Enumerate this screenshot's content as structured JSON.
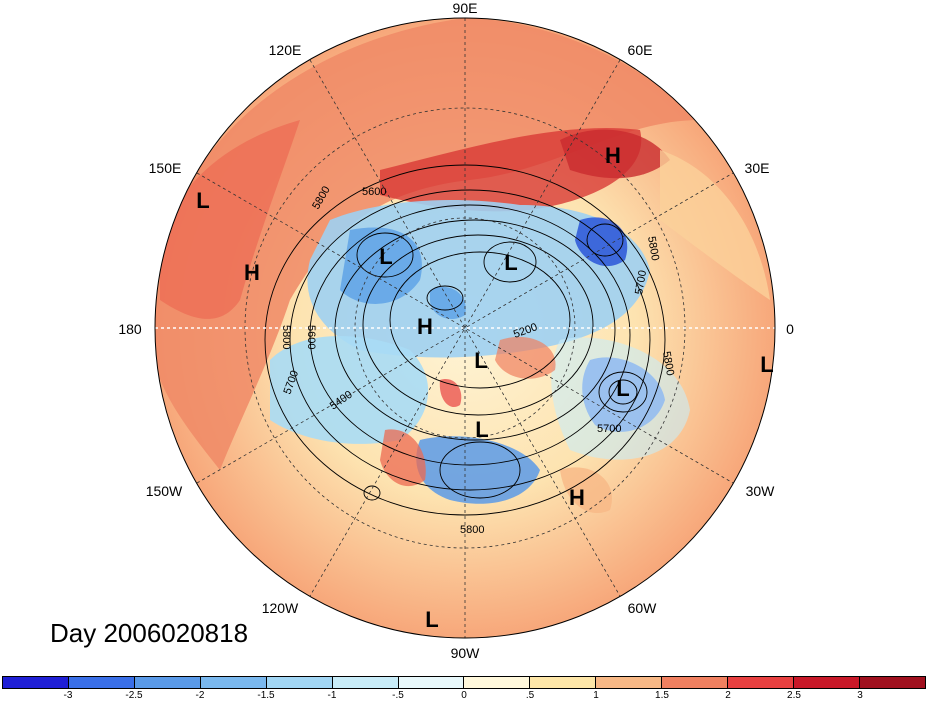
{
  "title": "Day 2006020818",
  "longitude_labels": {
    "lon_90e": "90E",
    "lon_60e": "60E",
    "lon_120e": "120E",
    "lon_30e": "30E",
    "lon_150e": "150E",
    "lon_180": "180",
    "lon_0": "0",
    "lon_150w": "150W",
    "lon_30w": "30W",
    "lon_120w": "120W",
    "lon_60w": "60W",
    "lon_90w": "90W"
  },
  "pressure_systems": [
    {
      "label": "H"
    },
    {
      "label": "H"
    },
    {
      "label": "H"
    },
    {
      "label": "H"
    },
    {
      "label": "L"
    },
    {
      "label": "L"
    },
    {
      "label": "L"
    },
    {
      "label": "L"
    },
    {
      "label": "L"
    },
    {
      "label": "L"
    },
    {
      "label": "L"
    },
    {
      "label": "L"
    }
  ],
  "contour_labels": [
    "5800",
    "5600",
    "5800",
    "5700",
    "5800",
    "5200",
    "5600",
    "5700",
    "5400",
    "5800",
    "5700",
    "5800"
  ],
  "colorbar": {
    "ticks": [
      "-3",
      "-2.5",
      "-2",
      "-1.5",
      "-1",
      "-.5",
      "0",
      ".5",
      "1",
      "1.5",
      "2",
      "2.5",
      "3"
    ],
    "colors": [
      "#1f1fd6",
      "#3a6fe8",
      "#5a9ae8",
      "#7ab8ee",
      "#a2d6f4",
      "#c8ecf8",
      "#e8f8fb",
      "#fff8dc",
      "#fde6a8",
      "#f7b886",
      "#f08060",
      "#e84040",
      "#c81828",
      "#a0101e"
    ]
  }
}
